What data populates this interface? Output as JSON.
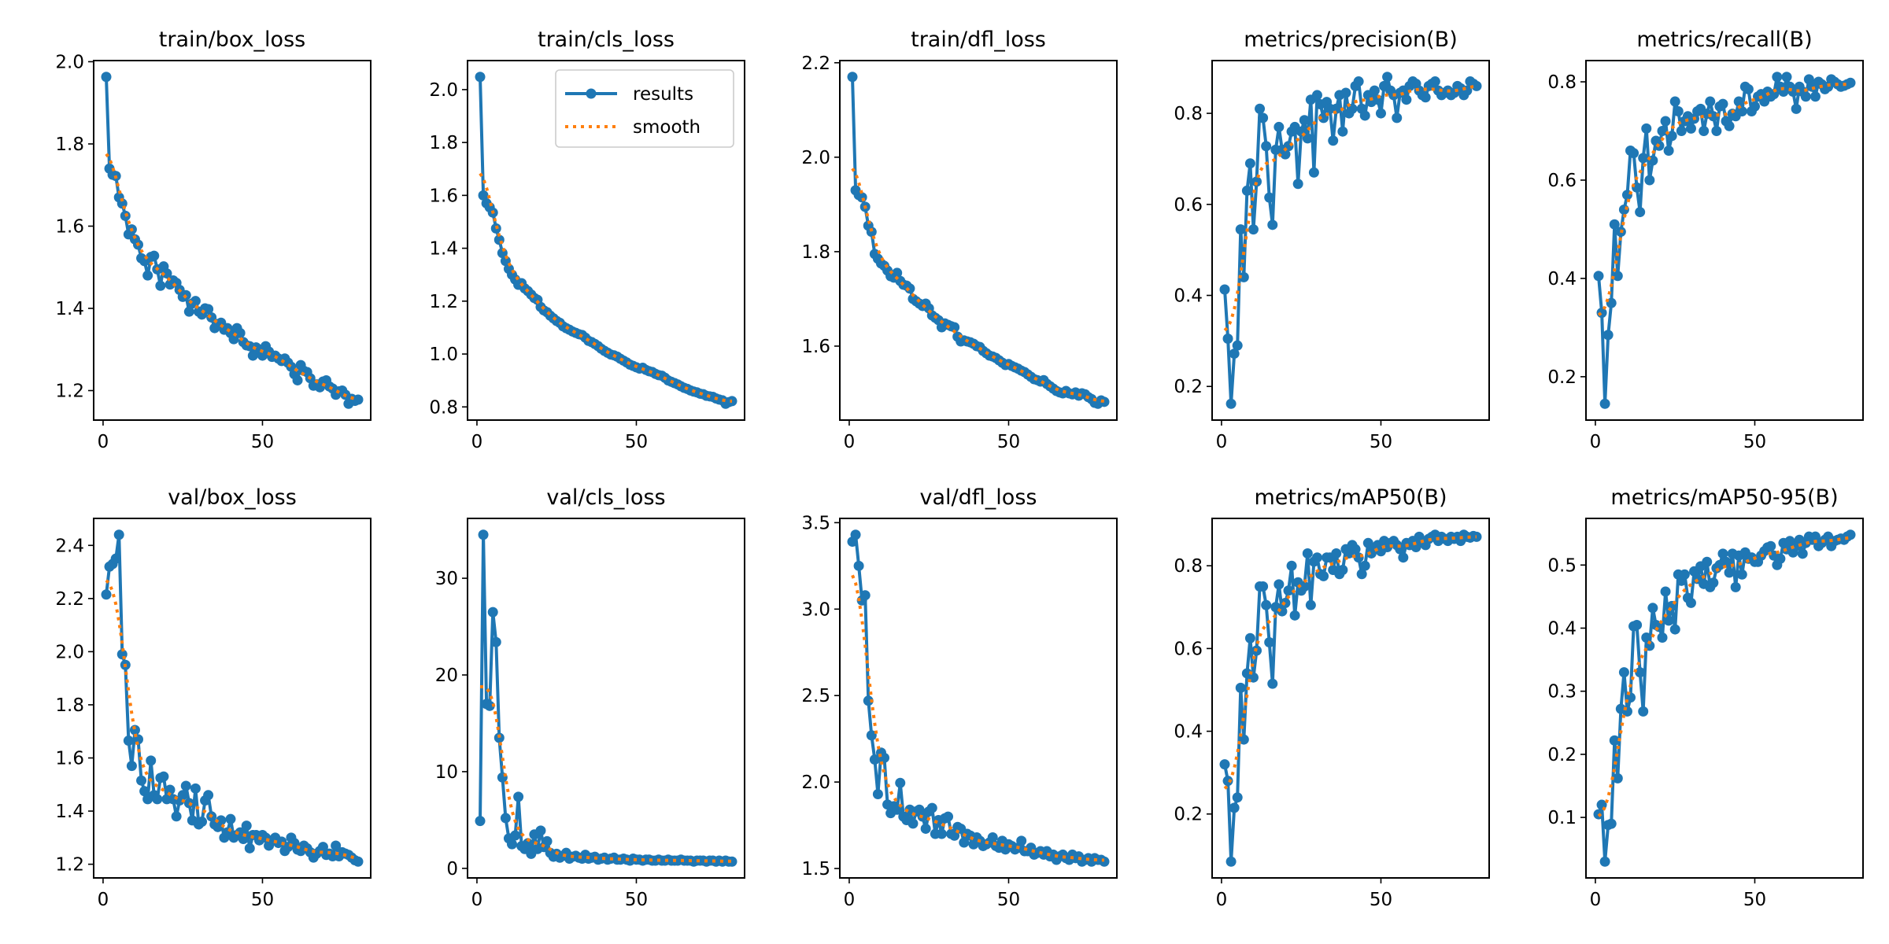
{
  "chart_data": [
    {
      "type": "line",
      "title": "train/box_loss",
      "xticks": [
        0,
        50
      ],
      "yticks": [
        1.2,
        1.4,
        1.6,
        1.8,
        2.0
      ],
      "legend": null,
      "values": [
        1.963,
        1.74,
        1.725,
        1.722,
        1.67,
        1.655,
        1.625,
        1.58,
        1.592,
        1.568,
        1.555,
        1.522,
        1.515,
        1.48,
        1.525,
        1.528,
        1.495,
        1.455,
        1.502,
        1.485,
        1.458,
        1.468,
        1.462,
        1.445,
        1.428,
        1.432,
        1.392,
        1.412,
        1.418,
        1.392,
        1.385,
        1.4,
        1.398,
        1.378,
        1.352,
        1.362,
        1.365,
        1.348,
        1.352,
        1.34,
        1.325,
        1.352,
        1.34,
        1.318,
        1.31,
        1.308,
        1.285,
        1.305,
        1.3,
        1.285,
        1.308,
        1.295,
        1.282,
        1.285,
        1.278,
        1.272,
        1.278,
        1.268,
        1.258,
        1.24,
        1.225,
        1.262,
        1.248,
        1.245,
        1.23,
        1.212,
        1.215,
        1.208,
        1.222,
        1.225,
        1.21,
        1.205,
        1.19,
        1.198,
        1.2,
        1.19,
        1.168,
        1.18,
        1.175,
        1.178
      ]
    },
    {
      "type": "line",
      "title": "train/cls_loss",
      "xticks": [
        0,
        50
      ],
      "yticks": [
        0.8,
        1.0,
        1.2,
        1.4,
        1.6,
        1.8,
        2.0
      ],
      "legend": "upper right",
      "values": [
        2.048,
        1.6,
        1.57,
        1.555,
        1.535,
        1.475,
        1.432,
        1.382,
        1.352,
        1.322,
        1.3,
        1.282,
        1.262,
        1.268,
        1.248,
        1.238,
        1.225,
        1.212,
        1.205,
        1.178,
        1.165,
        1.158,
        1.145,
        1.135,
        1.125,
        1.118,
        1.105,
        1.098,
        1.092,
        1.085,
        1.08,
        1.075,
        1.072,
        1.062,
        1.05,
        1.045,
        1.038,
        1.03,
        1.02,
        1.012,
        1.005,
        0.998,
        0.995,
        0.99,
        0.982,
        0.975,
        0.968,
        0.96,
        0.955,
        0.95,
        0.945,
        0.948,
        0.94,
        0.935,
        0.932,
        0.925,
        0.92,
        0.918,
        0.91,
        0.9,
        0.895,
        0.89,
        0.885,
        0.878,
        0.872,
        0.868,
        0.862,
        0.858,
        0.855,
        0.85,
        0.848,
        0.842,
        0.84,
        0.838,
        0.832,
        0.828,
        0.825,
        0.812,
        0.818,
        0.822
      ]
    },
    {
      "type": "line",
      "title": "train/dfl_loss",
      "xticks": [
        0,
        50
      ],
      "yticks": [
        1.6,
        1.8,
        2.0,
        2.2
      ],
      "legend": null,
      "values": [
        2.17,
        1.93,
        1.92,
        1.915,
        1.895,
        1.855,
        1.842,
        1.795,
        1.785,
        1.775,
        1.77,
        1.76,
        1.748,
        1.745,
        1.755,
        1.738,
        1.73,
        1.728,
        1.722,
        1.7,
        1.695,
        1.69,
        1.685,
        1.69,
        1.68,
        1.665,
        1.66,
        1.655,
        1.64,
        1.648,
        1.645,
        1.642,
        1.64,
        1.62,
        1.61,
        1.612,
        1.61,
        1.608,
        1.605,
        1.6,
        1.598,
        1.59,
        1.585,
        1.58,
        1.578,
        1.575,
        1.57,
        1.565,
        1.56,
        1.562,
        1.558,
        1.555,
        1.552,
        1.548,
        1.545,
        1.54,
        1.535,
        1.53,
        1.528,
        1.525,
        1.528,
        1.52,
        1.515,
        1.51,
        1.505,
        1.502,
        1.5,
        1.505,
        1.5,
        1.498,
        1.502,
        1.495,
        1.5,
        1.498,
        1.492,
        1.488,
        1.48,
        1.478,
        1.485,
        1.482
      ]
    },
    {
      "type": "line",
      "title": "metrics/precision(B)",
      "xticks": [
        0,
        50
      ],
      "yticks": [
        0.2,
        0.4,
        0.6,
        0.8
      ],
      "legend": null,
      "values": [
        0.413,
        0.305,
        0.162,
        0.272,
        0.29,
        0.545,
        0.44,
        0.63,
        0.69,
        0.545,
        0.65,
        0.81,
        0.79,
        0.728,
        0.615,
        0.555,
        0.72,
        0.77,
        0.72,
        0.71,
        0.728,
        0.76,
        0.77,
        0.645,
        0.76,
        0.785,
        0.745,
        0.83,
        0.67,
        0.84,
        0.82,
        0.79,
        0.825,
        0.81,
        0.74,
        0.81,
        0.84,
        0.76,
        0.845,
        0.8,
        0.81,
        0.86,
        0.87,
        0.81,
        0.795,
        0.84,
        0.825,
        0.85,
        0.83,
        0.8,
        0.86,
        0.88,
        0.85,
        0.84,
        0.79,
        0.845,
        0.85,
        0.83,
        0.86,
        0.87,
        0.865,
        0.85,
        0.84,
        0.835,
        0.86,
        0.865,
        0.87,
        0.85,
        0.84,
        0.845,
        0.85,
        0.84,
        0.845,
        0.86,
        0.855,
        0.84,
        0.85,
        0.87,
        0.865,
        0.86
      ]
    },
    {
      "type": "line",
      "title": "metrics/recall(B)",
      "xticks": [
        0,
        50
      ],
      "yticks": [
        0.2,
        0.4,
        0.6,
        0.8
      ],
      "legend": null,
      "values": [
        0.405,
        0.33,
        0.145,
        0.285,
        0.35,
        0.51,
        0.405,
        0.495,
        0.54,
        0.57,
        0.66,
        0.655,
        0.585,
        0.535,
        0.645,
        0.705,
        0.6,
        0.64,
        0.68,
        0.67,
        0.7,
        0.72,
        0.66,
        0.69,
        0.76,
        0.74,
        0.7,
        0.72,
        0.73,
        0.705,
        0.725,
        0.74,
        0.745,
        0.7,
        0.735,
        0.76,
        0.73,
        0.7,
        0.75,
        0.755,
        0.72,
        0.71,
        0.735,
        0.73,
        0.76,
        0.74,
        0.79,
        0.785,
        0.74,
        0.75,
        0.77,
        0.775,
        0.76,
        0.78,
        0.77,
        0.775,
        0.81,
        0.79,
        0.78,
        0.81,
        0.79,
        0.78,
        0.745,
        0.79,
        0.78,
        0.77,
        0.805,
        0.79,
        0.77,
        0.8,
        0.795,
        0.785,
        0.79,
        0.805,
        0.8,
        0.795,
        0.79,
        0.792,
        0.795,
        0.798
      ]
    },
    {
      "type": "line",
      "title": "val/box_loss",
      "xticks": [
        0,
        50
      ],
      "yticks": [
        1.2,
        1.4,
        1.6,
        1.8,
        2.0,
        2.2,
        2.4
      ],
      "legend": null,
      "values": [
        2.215,
        2.32,
        2.33,
        2.35,
        2.44,
        1.99,
        1.95,
        1.665,
        1.57,
        1.705,
        1.67,
        1.515,
        1.475,
        1.445,
        1.59,
        1.46,
        1.445,
        1.525,
        1.53,
        1.445,
        1.48,
        1.445,
        1.38,
        1.44,
        1.46,
        1.495,
        1.43,
        1.365,
        1.485,
        1.35,
        1.36,
        1.44,
        1.46,
        1.38,
        1.35,
        1.34,
        1.365,
        1.3,
        1.32,
        1.37,
        1.3,
        1.31,
        1.32,
        1.295,
        1.345,
        1.26,
        1.31,
        1.31,
        1.29,
        1.31,
        1.3,
        1.27,
        1.29,
        1.3,
        1.28,
        1.285,
        1.25,
        1.265,
        1.3,
        1.28,
        1.255,
        1.25,
        1.27,
        1.26,
        1.245,
        1.225,
        1.24,
        1.25,
        1.265,
        1.235,
        1.24,
        1.23,
        1.27,
        1.23,
        1.245,
        1.24,
        1.235,
        1.225,
        1.215,
        1.21
      ]
    },
    {
      "type": "line",
      "title": "val/cls_loss",
      "xticks": [
        0,
        50
      ],
      "yticks": [
        0,
        10,
        20,
        30
      ],
      "legend": null,
      "values": [
        4.9,
        34.5,
        17.0,
        16.8,
        26.5,
        23.4,
        13.5,
        9.4,
        5.2,
        3.1,
        2.5,
        3.4,
        7.4,
        2.3,
        2.0,
        2.6,
        1.5,
        3.5,
        2.0,
        3.9,
        2.2,
        2.8,
        1.6,
        1.2,
        1.5,
        1.1,
        1.3,
        1.6,
        1.0,
        1.2,
        1.3,
        1.1,
        1.0,
        1.4,
        1.0,
        1.1,
        1.2,
        0.9,
        1.0,
        1.1,
        0.9,
        1.0,
        1.1,
        0.9,
        0.9,
        1.0,
        0.9,
        0.8,
        1.0,
        0.9,
        0.9,
        0.8,
        0.9,
        0.9,
        0.8,
        0.8,
        0.9,
        0.8,
        0.8,
        0.9,
        0.8,
        0.8,
        0.8,
        0.9,
        0.8,
        0.8,
        0.8,
        0.7,
        0.8,
        0.8,
        0.8,
        0.7,
        0.8,
        0.8,
        0.7,
        0.8,
        0.7,
        0.8,
        0.7,
        0.7
      ]
    },
    {
      "type": "line",
      "title": "val/dfl_loss",
      "xticks": [
        0,
        50
      ],
      "yticks": [
        1.5,
        2.0,
        2.5,
        3.0,
        3.5
      ],
      "legend": null,
      "values": [
        3.39,
        3.43,
        3.25,
        3.05,
        3.08,
        2.47,
        2.27,
        2.13,
        1.93,
        2.17,
        2.14,
        1.87,
        1.82,
        1.86,
        1.84,
        1.995,
        1.8,
        1.78,
        1.84,
        1.76,
        1.83,
        1.84,
        1.8,
        1.73,
        1.83,
        1.85,
        1.7,
        1.78,
        1.7,
        1.79,
        1.8,
        1.7,
        1.69,
        1.74,
        1.73,
        1.65,
        1.7,
        1.69,
        1.64,
        1.68,
        1.66,
        1.63,
        1.64,
        1.65,
        1.68,
        1.63,
        1.62,
        1.66,
        1.61,
        1.64,
        1.63,
        1.61,
        1.62,
        1.66,
        1.6,
        1.6,
        1.62,
        1.58,
        1.59,
        1.6,
        1.58,
        1.6,
        1.57,
        1.58,
        1.55,
        1.57,
        1.58,
        1.56,
        1.55,
        1.58,
        1.56,
        1.57,
        1.54,
        1.55,
        1.56,
        1.54,
        1.56,
        1.55,
        1.55,
        1.54
      ]
    },
    {
      "type": "line",
      "title": "metrics/mAP50(B)",
      "xticks": [
        0,
        50
      ],
      "yticks": [
        0.2,
        0.4,
        0.6,
        0.8
      ],
      "legend": null,
      "values": [
        0.32,
        0.28,
        0.085,
        0.215,
        0.24,
        0.505,
        0.38,
        0.54,
        0.625,
        0.53,
        0.595,
        0.75,
        0.75,
        0.705,
        0.615,
        0.515,
        0.7,
        0.755,
        0.69,
        0.71,
        0.74,
        0.8,
        0.68,
        0.76,
        0.74,
        0.75,
        0.83,
        0.705,
        0.81,
        0.82,
        0.78,
        0.775,
        0.82,
        0.82,
        0.79,
        0.83,
        0.78,
        0.79,
        0.84,
        0.83,
        0.85,
        0.84,
        0.82,
        0.78,
        0.8,
        0.855,
        0.83,
        0.84,
        0.85,
        0.835,
        0.86,
        0.845,
        0.855,
        0.86,
        0.85,
        0.84,
        0.82,
        0.855,
        0.85,
        0.86,
        0.845,
        0.87,
        0.86,
        0.85,
        0.865,
        0.87,
        0.875,
        0.86,
        0.87,
        0.865,
        0.86,
        0.87,
        0.865,
        0.87,
        0.86,
        0.875,
        0.87,
        0.868,
        0.872,
        0.87
      ]
    },
    {
      "type": "line",
      "title": "metrics/mAP50-95(B)",
      "xticks": [
        0,
        50
      ],
      "yticks": [
        0.1,
        0.2,
        0.3,
        0.4,
        0.5
      ],
      "legend": null,
      "values": [
        0.105,
        0.12,
        0.03,
        0.088,
        0.09,
        0.222,
        0.162,
        0.272,
        0.33,
        0.268,
        0.29,
        0.403,
        0.405,
        0.33,
        0.268,
        0.385,
        0.372,
        0.432,
        0.405,
        0.402,
        0.385,
        0.458,
        0.412,
        0.435,
        0.398,
        0.485,
        0.475,
        0.485,
        0.448,
        0.44,
        0.49,
        0.478,
        0.498,
        0.47,
        0.505,
        0.465,
        0.472,
        0.495,
        0.5,
        0.518,
        0.505,
        0.488,
        0.518,
        0.465,
        0.515,
        0.485,
        0.52,
        0.51,
        0.512,
        0.505,
        0.505,
        0.515,
        0.522,
        0.528,
        0.53,
        0.515,
        0.5,
        0.51,
        0.535,
        0.525,
        0.538,
        0.52,
        0.53,
        0.54,
        0.518,
        0.535,
        0.545,
        0.54,
        0.545,
        0.53,
        0.535,
        0.54,
        0.545,
        0.53,
        0.538,
        0.54,
        0.542,
        0.54,
        0.545,
        0.548
      ]
    }
  ],
  "legend": {
    "results_label": "results",
    "smooth_label": "smooth"
  },
  "colors": {
    "results": "#1f77b4",
    "smooth": "#ff7f0e"
  }
}
